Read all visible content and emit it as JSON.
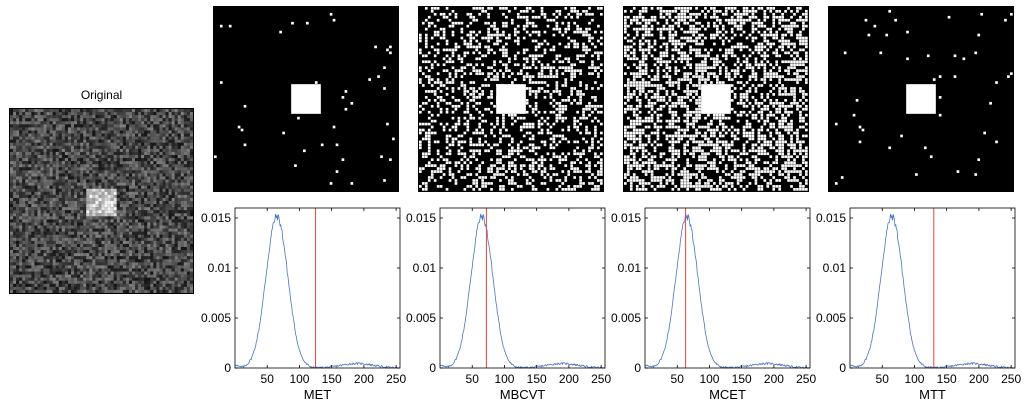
{
  "original": {
    "title": "Original"
  },
  "colors": {
    "histogram": "#4a74c4",
    "threshold": "#e8453c",
    "axis": "#000000"
  },
  "chart_data": [
    {
      "type": "line",
      "xlabel": "MET",
      "threshold": 125,
      "xlim": [
        0,
        256
      ],
      "ylim": [
        0,
        0.016
      ],
      "xticks": [
        50,
        100,
        150,
        200,
        250
      ],
      "yticks": [
        0,
        0.005,
        0.01,
        0.015
      ],
      "ytick_labels": [
        "0",
        "0.005",
        "0.01",
        "0.015"
      ]
    },
    {
      "type": "line",
      "xlabel": "MBCVT",
      "threshold": 72,
      "xlim": [
        0,
        256
      ],
      "ylim": [
        0,
        0.016
      ],
      "xticks": [
        50,
        100,
        150,
        200,
        250
      ],
      "yticks": [
        0,
        0.005,
        0.01,
        0.015
      ],
      "ytick_labels": [
        "0",
        "0.005",
        "0.01",
        "0.015"
      ]
    },
    {
      "type": "line",
      "xlabel": "MCET",
      "threshold": 63,
      "xlim": [
        0,
        256
      ],
      "ylim": [
        0,
        0.016
      ],
      "xticks": [
        50,
        100,
        150,
        200,
        250
      ],
      "yticks": [
        0,
        0.005,
        0.01,
        0.015
      ],
      "ytick_labels": [
        "0",
        "0.005",
        "0.01",
        "0.015"
      ]
    },
    {
      "type": "line",
      "xlabel": "MTT",
      "threshold": 130,
      "xlim": [
        0,
        256
      ],
      "ylim": [
        0,
        0.016
      ],
      "xticks": [
        50,
        100,
        150,
        200,
        250
      ],
      "yticks": [
        0,
        0.005,
        0.01,
        0.015
      ],
      "ytick_labels": [
        "0",
        "0.005",
        "0.01",
        "0.015"
      ]
    }
  ]
}
